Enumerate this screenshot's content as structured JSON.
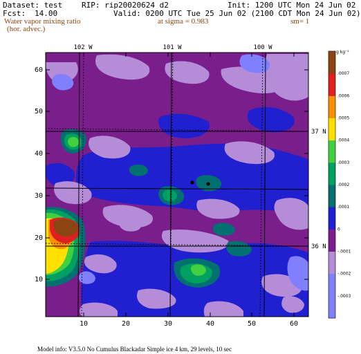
{
  "header": {
    "dataset": "Dataset: test",
    "rip": "RIP: rip20020624 d2",
    "init": "Init: 1200 UTC Mon 24 Jun 02",
    "fcst_label": "Fcst:",
    "fcst_value": "14.00",
    "valid": "Valid: 0200 UTC Tue 25 Jun 02 (2100 CDT Mon 24 Jun 02)",
    "field_line1": "Water vapor mixing ratio",
    "field_line2": "(hor. advec.)",
    "sigma": "at sigma = 0.983",
    "sm": "sm= 1"
  },
  "map": {
    "lon_labels": [
      "102 W",
      "101 W",
      "100 W"
    ],
    "lat_labels": [
      "37 N",
      "36 N"
    ],
    "y_ticks": [
      "60",
      "50",
      "40",
      "30",
      "20",
      "10"
    ],
    "x_ticks": [
      "10",
      "20",
      "30",
      "40",
      "50",
      "60"
    ],
    "x_range": [
      1,
      64
    ],
    "y_range": [
      1,
      64
    ]
  },
  "legend": {
    "unit": "g kg⁻¹",
    "levels": [
      "-.0003",
      "-.0002",
      "-.0001",
      "0",
      ".0001",
      ".0002",
      ".0003",
      ".0004",
      ".0005",
      ".0006",
      ".0007"
    ],
    "colors": [
      "#8080ff",
      "#b48cd8",
      "#7a1e8c",
      "#2020d0",
      "#007070",
      "#00a060",
      "#40d040",
      "#ffe000",
      "#ff9000",
      "#e02020",
      "#8b4513"
    ]
  },
  "footer": {
    "model_info": "Model info: V3.5.0 No Cumulus Blackadar Simple ice 4 km, 29 levels, 10 sec"
  }
}
